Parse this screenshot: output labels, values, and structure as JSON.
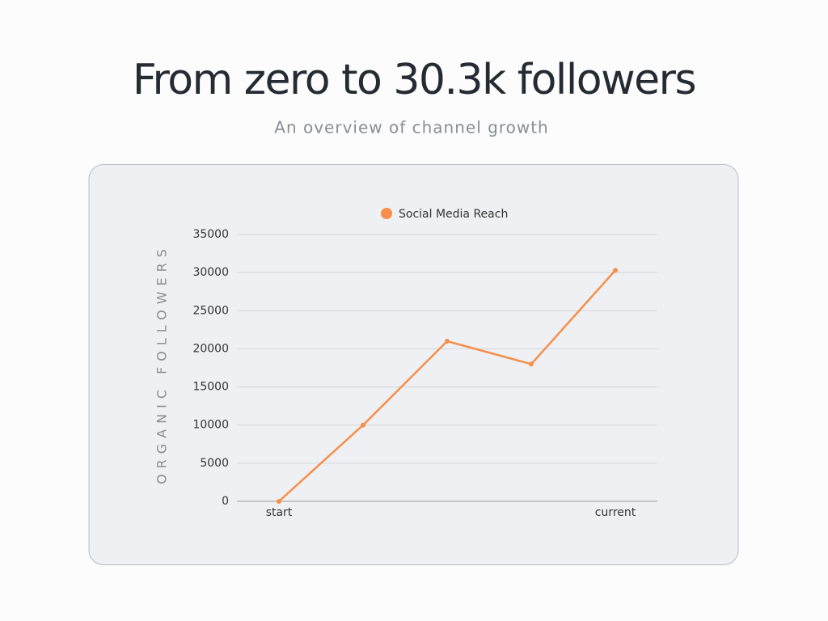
{
  "chart_data": {
    "type": "line",
    "title": "From zero to 30.3k followers",
    "subtitle": "An overview of channel growth",
    "y_label": "ORGANIC FOLLOWERS",
    "categories": [
      "start",
      null,
      null,
      null,
      "current"
    ],
    "series": [
      {
        "name": "Social Media Reach",
        "color": "#f78f4a",
        "values": [
          0,
          10000,
          21000,
          18000,
          30300
        ]
      }
    ],
    "ylim": [
      0,
      35000
    ],
    "yticks": [
      0,
      5000,
      10000,
      15000,
      20000,
      25000,
      30000,
      35000
    ],
    "grid": true
  }
}
